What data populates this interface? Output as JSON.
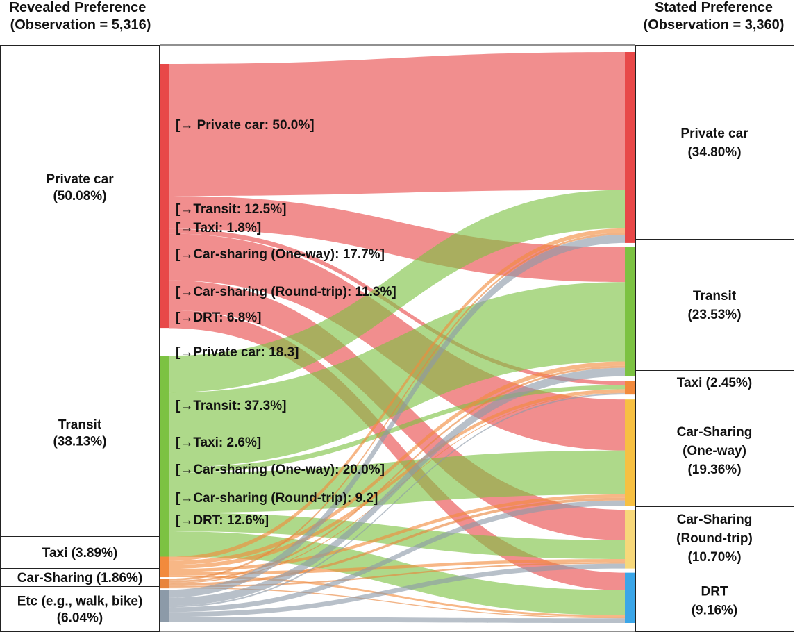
{
  "headers": {
    "left_title": "Revealed Preference",
    "left_obs": "(Observation = 5,316)",
    "right_title": "Stated Preference",
    "right_obs": "(Observation = 3,360)"
  },
  "colors": {
    "private_car": "#e84848",
    "transit": "#7cc242",
    "taxi": "#f28a3c",
    "car_sharing_one_way": "#f7c042",
    "car_sharing_round_trip": "#f7d87a",
    "drt": "#3ba6e8",
    "car_sharing": "#e8843c",
    "etc": "#8c9aa8"
  },
  "chart_data": {
    "type": "sankey",
    "sources": [
      {
        "key": "private_car",
        "label_lines": [
          "Private car",
          "(50.08%)"
        ],
        "share": 50.08
      },
      {
        "key": "transit",
        "label_lines": [
          "Transit",
          "(38.13%)"
        ],
        "share": 38.13
      },
      {
        "key": "taxi",
        "label_lines": [
          "Taxi (3.89%)"
        ],
        "share": 3.89
      },
      {
        "key": "car_sharing",
        "label_lines": [
          "Car-Sharing (1.86%)"
        ],
        "share": 1.86
      },
      {
        "key": "etc",
        "label_lines": [
          "Etc (e.g., walk, bike)",
          "(6.04%)"
        ],
        "share": 6.04
      }
    ],
    "targets": [
      {
        "key": "private_car",
        "label_lines": [
          "Private car",
          "(34.80%)"
        ],
        "share": 34.8
      },
      {
        "key": "transit",
        "label_lines": [
          "Transit",
          "(23.53%)"
        ],
        "share": 23.53
      },
      {
        "key": "taxi",
        "label_lines": [
          "Taxi (2.45%)"
        ],
        "share": 2.45
      },
      {
        "key": "car_sharing_one_way",
        "label_lines": [
          "Car-Sharing",
          "(One-way)",
          "(19.36%)"
        ],
        "share": 19.36
      },
      {
        "key": "car_sharing_round_trip",
        "label_lines": [
          "Car-Sharing",
          "(Round-trip)",
          "(10.70%)"
        ],
        "share": 10.7
      },
      {
        "key": "drt",
        "label_lines": [
          "DRT",
          "(9.16%)"
        ],
        "share": 9.16
      }
    ],
    "flows": [
      {
        "source": "private_car",
        "target": "private_car",
        "percent": 50.0,
        "label": "[→ Private car: 50.0%]"
      },
      {
        "source": "private_car",
        "target": "transit",
        "percent": 12.5,
        "label": "[→Transit: 12.5%]"
      },
      {
        "source": "private_car",
        "target": "taxi",
        "percent": 1.8,
        "label": "[→Taxi: 1.8%]"
      },
      {
        "source": "private_car",
        "target": "car_sharing_one_way",
        "percent": 17.7,
        "label": "[→Car-sharing (One-way): 17.7%]"
      },
      {
        "source": "private_car",
        "target": "car_sharing_round_trip",
        "percent": 11.3,
        "label": "[→Car-sharing (Round-trip): 11.3%]"
      },
      {
        "source": "private_car",
        "target": "drt",
        "percent": 6.8,
        "label": "[→DRT: 6.8%]"
      },
      {
        "source": "transit",
        "target": "private_car",
        "percent": 18.3,
        "label": "[→Private car: 18.3]"
      },
      {
        "source": "transit",
        "target": "transit",
        "percent": 37.3,
        "label": "[→Transit: 37.3%]"
      },
      {
        "source": "transit",
        "target": "taxi",
        "percent": 2.6,
        "label": "[→Taxi: 2.6%]"
      },
      {
        "source": "transit",
        "target": "car_sharing_one_way",
        "percent": 20.0,
        "label": "[→Car-sharing (One-way): 20.0%]"
      },
      {
        "source": "transit",
        "target": "car_sharing_round_trip",
        "percent": 9.2,
        "label": "[→Car-sharing (Round-trip): 9.2]"
      },
      {
        "source": "transit",
        "target": "drt",
        "percent": 12.6,
        "label": "[→DRT: 12.6%]"
      },
      {
        "source": "taxi",
        "target": "private_car",
        "percent": 20.0,
        "label": ""
      },
      {
        "source": "taxi",
        "target": "transit",
        "percent": 20.0,
        "label": ""
      },
      {
        "source": "taxi",
        "target": "taxi",
        "percent": 20.0,
        "label": ""
      },
      {
        "source": "taxi",
        "target": "car_sharing_one_way",
        "percent": 15.0,
        "label": ""
      },
      {
        "source": "taxi",
        "target": "car_sharing_round_trip",
        "percent": 15.0,
        "label": ""
      },
      {
        "source": "taxi",
        "target": "drt",
        "percent": 10.0,
        "label": ""
      },
      {
        "source": "car_sharing",
        "target": "private_car",
        "percent": 20.0,
        "label": ""
      },
      {
        "source": "car_sharing",
        "target": "transit",
        "percent": 20.0,
        "label": ""
      },
      {
        "source": "car_sharing",
        "target": "taxi",
        "percent": 10.0,
        "label": ""
      },
      {
        "source": "car_sharing",
        "target": "car_sharing_one_way",
        "percent": 25.0,
        "label": ""
      },
      {
        "source": "car_sharing",
        "target": "car_sharing_round_trip",
        "percent": 15.0,
        "label": ""
      },
      {
        "source": "car_sharing",
        "target": "drt",
        "percent": 10.0,
        "label": ""
      },
      {
        "source": "etc",
        "target": "private_car",
        "percent": 25.0,
        "label": ""
      },
      {
        "source": "etc",
        "target": "transit",
        "percent": 25.0,
        "label": ""
      },
      {
        "source": "etc",
        "target": "taxi",
        "percent": 5.0,
        "label": ""
      },
      {
        "source": "etc",
        "target": "car_sharing_one_way",
        "percent": 15.0,
        "label": ""
      },
      {
        "source": "etc",
        "target": "car_sharing_round_trip",
        "percent": 15.0,
        "label": ""
      },
      {
        "source": "etc",
        "target": "drt",
        "percent": 15.0,
        "label": ""
      }
    ]
  }
}
